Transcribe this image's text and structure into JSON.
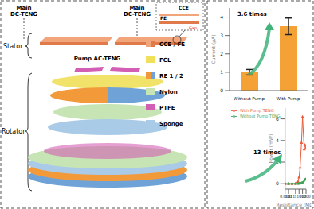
{
  "diagram": {
    "main_left": "Main DC-TENG",
    "main_right": "Main DC-TENG",
    "stator": "Stator",
    "rotator": "Rotator",
    "pump": "Pump AC-TENG",
    "inset": {
      "cce": "CCE",
      "fe": "FE",
      "gap": "Gap"
    },
    "legend": [
      {
        "label": "CCE / FE",
        "colors": [
          "#f2a47a",
          "#e07a4a"
        ]
      },
      {
        "label": "FCL",
        "color": "#f0e05a"
      },
      {
        "label": "RE 1 / 2",
        "colors": [
          "#f29a3a",
          "#6fa3d8"
        ]
      },
      {
        "label": "Nylon",
        "color": "#c6e4b4"
      },
      {
        "label": "PTFE",
        "color": "#d35fb4"
      },
      {
        "label": "Sponge",
        "color": "#a9cbe8"
      }
    ]
  },
  "chart_data": [
    {
      "type": "bar",
      "categories": [
        "Without Pump",
        "With Pump"
      ],
      "values": [
        1.0,
        3.5
      ],
      "errors": [
        0.15,
        0.45
      ],
      "color": "#f4a236",
      "y_label": "Current (μA)",
      "ylim": [
        0,
        4.5
      ],
      "yticks": [
        0,
        1,
        2,
        3,
        4
      ],
      "annotation": "3.6 times"
    },
    {
      "type": "line",
      "log": "x",
      "x": [
        0.001,
        0.01,
        0.1,
        1,
        5,
        10,
        20,
        50,
        100,
        300,
        500,
        1000
      ],
      "series": [
        {
          "name": "With Pump TENG",
          "color": "#ee5a36",
          "marker": "triangle",
          "values": [
            0,
            0,
            0,
            0.02,
            0.2,
            0.6,
            1.5,
            3.8,
            6.2,
            3.2,
            3.6,
            3.3
          ]
        },
        {
          "name": "Without Pump TENG",
          "color": "#3fa35a",
          "marker": "circle",
          "values": [
            0,
            0,
            0,
            0,
            0.01,
            0.02,
            0.04,
            0.08,
            0.12,
            0.3,
            0.4,
            0.45
          ]
        }
      ],
      "xlim": [
        0.001,
        1000
      ],
      "xticks": [
        0.001,
        0.01,
        0.1,
        1,
        10,
        100,
        1000
      ],
      "ylim": [
        -0.5,
        7
      ],
      "yticks": [
        0,
        2,
        4,
        6
      ],
      "x_label": "Resistance (MΩ)",
      "y_label": "Power (mW)",
      "legend": "top-left",
      "annotation": "13 times"
    }
  ]
}
